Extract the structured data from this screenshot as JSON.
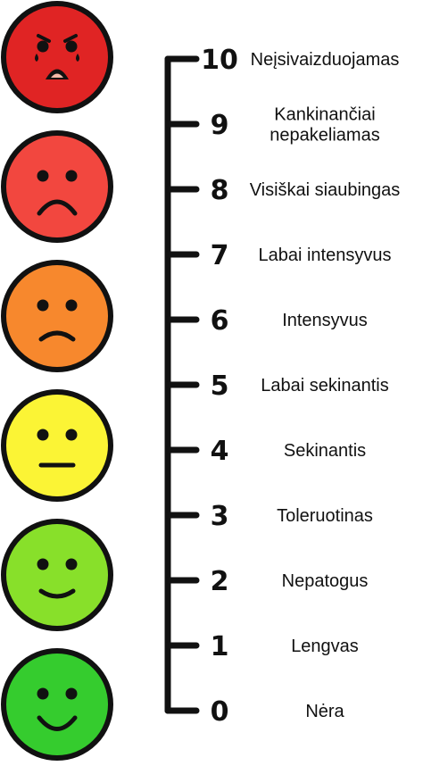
{
  "scale": {
    "levels": [
      {
        "value": "10",
        "label_lines": [
          "Neįsivaizduojamas"
        ]
      },
      {
        "value": "9",
        "label_lines": [
          "Kankinančiai",
          "nepakeliamas"
        ]
      },
      {
        "value": "8",
        "label_lines": [
          "Visiškai siaubingas"
        ]
      },
      {
        "value": "7",
        "label_lines": [
          "Labai intensyvus"
        ]
      },
      {
        "value": "6",
        "label_lines": [
          "Intensyvus"
        ]
      },
      {
        "value": "5",
        "label_lines": [
          "Labai sekinantis"
        ]
      },
      {
        "value": "4",
        "label_lines": [
          "Sekinantis"
        ]
      },
      {
        "value": "3",
        "label_lines": [
          "Toleruotinas"
        ]
      },
      {
        "value": "2",
        "label_lines": [
          "Nepatogus"
        ]
      },
      {
        "value": "1",
        "label_lines": [
          "Lengvas"
        ]
      },
      {
        "value": "0",
        "label_lines": [
          "Nėra"
        ]
      }
    ]
  },
  "faces": [
    {
      "name": "face-crying",
      "color": "#e02424",
      "mood": "crying"
    },
    {
      "name": "face-sad",
      "color": "#f2473f",
      "mood": "sad"
    },
    {
      "name": "face-unhappy",
      "color": "#f7882d",
      "mood": "unhappy"
    },
    {
      "name": "face-neutral",
      "color": "#fbf435",
      "mood": "neutral"
    },
    {
      "name": "face-slight-smile",
      "color": "#88e02a",
      "mood": "slight-smile"
    },
    {
      "name": "face-happy",
      "color": "#35cc2e",
      "mood": "happy"
    }
  ]
}
